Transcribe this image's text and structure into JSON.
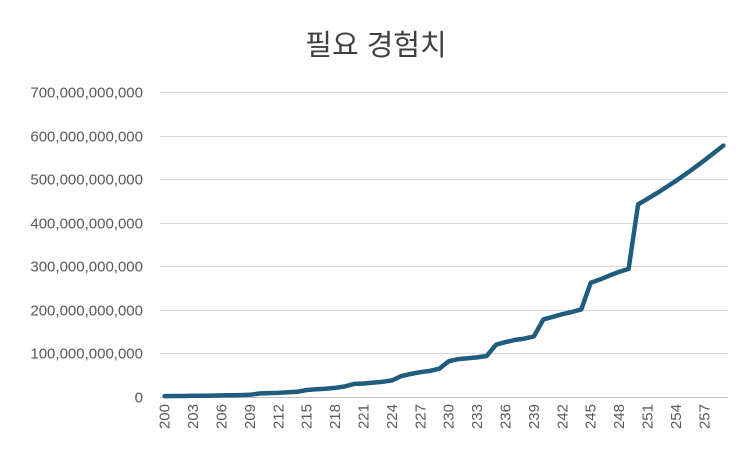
{
  "chart_data": {
    "type": "line",
    "title": "필요 경험치",
    "xlabel": "",
    "ylabel": "",
    "ylim": [
      0,
      700000000000
    ],
    "y_ticks": [
      0,
      100000000000,
      200000000000,
      300000000000,
      400000000000,
      500000000000,
      600000000000,
      700000000000
    ],
    "y_tick_labels": [
      "0",
      "100,000,000,000",
      "200,000,000,000",
      "300,000,000,000",
      "400,000,000,000",
      "500,000,000,000",
      "600,000,000,000",
      "700,000,000,000"
    ],
    "x_tick_labels": [
      "200",
      "203",
      "206",
      "209",
      "212",
      "215",
      "218",
      "221",
      "224",
      "227",
      "230",
      "233",
      "236",
      "239",
      "242",
      "245",
      "248",
      "251",
      "254",
      "257"
    ],
    "x_tick_values": [
      200,
      203,
      206,
      209,
      212,
      215,
      218,
      221,
      224,
      227,
      230,
      233,
      236,
      239,
      242,
      245,
      248,
      251,
      254,
      257
    ],
    "grid": true,
    "legend": "none",
    "color": "#1f5c7d",
    "x": [
      200,
      201,
      202,
      203,
      204,
      205,
      206,
      207,
      208,
      209,
      210,
      211,
      212,
      213,
      214,
      215,
      216,
      217,
      218,
      219,
      220,
      221,
      222,
      223,
      224,
      225,
      226,
      227,
      228,
      229,
      230,
      231,
      232,
      233,
      234,
      235,
      236,
      237,
      238,
      239,
      240,
      241,
      242,
      243,
      244,
      245,
      246,
      247,
      248,
      249,
      250,
      251,
      252,
      253,
      254,
      255,
      256,
      257,
      258,
      259
    ],
    "series": [
      {
        "values": [
          2000000000,
          2200000000,
          2400000000,
          2700000000,
          3000000000,
          3300000000,
          3600000000,
          4000000000,
          4400000000,
          5000000000,
          8000000000,
          9000000000,
          9500000000,
          11000000000,
          12000000000,
          16000000000,
          18000000000,
          19000000000,
          21000000000,
          24000000000,
          30000000000,
          31000000000,
          33000000000,
          35000000000,
          38000000000,
          48000000000,
          53000000000,
          57000000000,
          60000000000,
          65000000000,
          82000000000,
          87000000000,
          89000000000,
          91000000000,
          94000000000,
          120000000000,
          126000000000,
          131000000000,
          134000000000,
          139000000000,
          178000000000,
          184000000000,
          190000000000,
          195000000000,
          201000000000,
          262000000000,
          270000000000,
          279000000000,
          287000000000,
          294000000000,
          442000000000,
          455000000000,
          468000000000,
          482000000000,
          496000000000,
          511000000000,
          527000000000,
          543000000000,
          560000000000,
          577000000000
        ]
      }
    ]
  }
}
